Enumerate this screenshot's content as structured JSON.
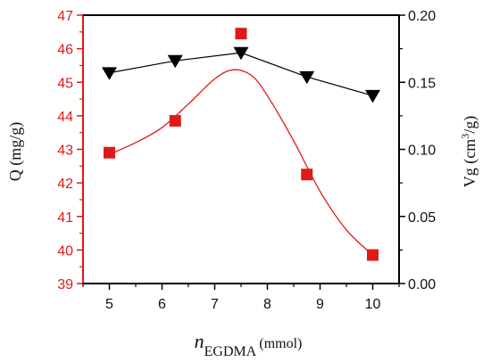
{
  "chart_data": {
    "type": "scatter",
    "x": [
      5,
      6.25,
      7.5,
      8.75,
      10
    ],
    "xticks": [
      "5",
      "6",
      "7",
      "8",
      "9",
      "10"
    ],
    "xlim": [
      4.5,
      10.5
    ],
    "xlabel": {
      "italic": "n",
      "subscript": "EGDMA",
      "suffix": " (mmol)"
    },
    "left_axis": {
      "label": "Q (mg/g)",
      "ylim": [
        39,
        47
      ],
      "ticks": [
        "39",
        "40",
        "41",
        "42",
        "43",
        "44",
        "45",
        "46",
        "47"
      ],
      "color": "#e01a1a"
    },
    "right_axis": {
      "label_prefix": "Vg (cm",
      "label_sup": "3",
      "label_suffix": "/g)",
      "ylim": [
        0.0,
        0.2
      ],
      "ticks": [
        "0.00",
        "0.05",
        "0.10",
        "0.15",
        "0.20"
      ],
      "color": "#111111"
    },
    "series": [
      {
        "axis": "left",
        "marker": "square",
        "color": "#e01a1a",
        "values": [
          42.9,
          43.85,
          46.45,
          42.25,
          39.85
        ],
        "fit_curve": [
          [
            5,
            42.85
          ],
          [
            5.5,
            43.2
          ],
          [
            6,
            43.65
          ],
          [
            6.5,
            44.35
          ],
          [
            7,
            45.1
          ],
          [
            7.35,
            45.37
          ],
          [
            7.7,
            45.2
          ],
          [
            8,
            44.6
          ],
          [
            8.5,
            43.25
          ],
          [
            9,
            41.75
          ],
          [
            9.5,
            40.6
          ],
          [
            10,
            39.85
          ]
        ]
      },
      {
        "axis": "right",
        "marker": "triangle-down",
        "color": "#000000",
        "values": [
          0.157,
          0.166,
          0.172,
          0.154,
          0.14
        ],
        "connect": true
      }
    ]
  }
}
